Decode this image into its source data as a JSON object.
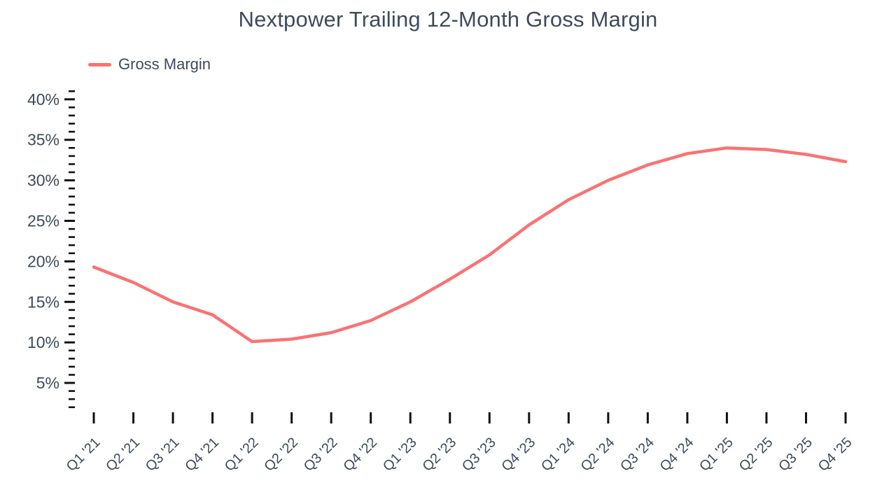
{
  "chart_data": {
    "type": "line",
    "title": "Nextpower Trailing 12-Month Gross Margin",
    "categories": [
      "Q1 '21",
      "Q2 '21",
      "Q3 '21",
      "Q4 '21",
      "Q1 '22",
      "Q2 '22",
      "Q3 '22",
      "Q4 '22",
      "Q1 '23",
      "Q2 '23",
      "Q3 '23",
      "Q4 '23",
      "Q1 '24",
      "Q2 '24",
      "Q3 '24",
      "Q4 '24",
      "Q1 '25",
      "Q2 '25",
      "Q3 '25",
      "Q4 '25"
    ],
    "series": [
      {
        "name": "Gross Margin",
        "values": [
          19.3,
          17.4,
          15.0,
          13.4,
          10.1,
          10.4,
          11.2,
          12.7,
          15.0,
          17.8,
          20.8,
          24.5,
          27.6,
          30.0,
          31.9,
          33.3,
          34.0,
          33.8,
          33.2,
          32.3
        ]
      }
    ],
    "y_axis": {
      "tick_values": [
        5,
        10,
        15,
        20,
        25,
        30,
        35,
        40
      ],
      "tick_labels": [
        "5%",
        "10%",
        "15%",
        "20%",
        "25%",
        "30%",
        "35%",
        "40%"
      ],
      "minor_tick_step": 1,
      "range": [
        2,
        41
      ],
      "unit": "%"
    },
    "x_axis": {
      "label_rotation": -45
    },
    "legend_position": "top-left",
    "grid": false,
    "colors": {
      "line": "#F97373",
      "text": "#3D4B5C",
      "ticks": "#111111",
      "background": "#FFFFFF"
    }
  }
}
